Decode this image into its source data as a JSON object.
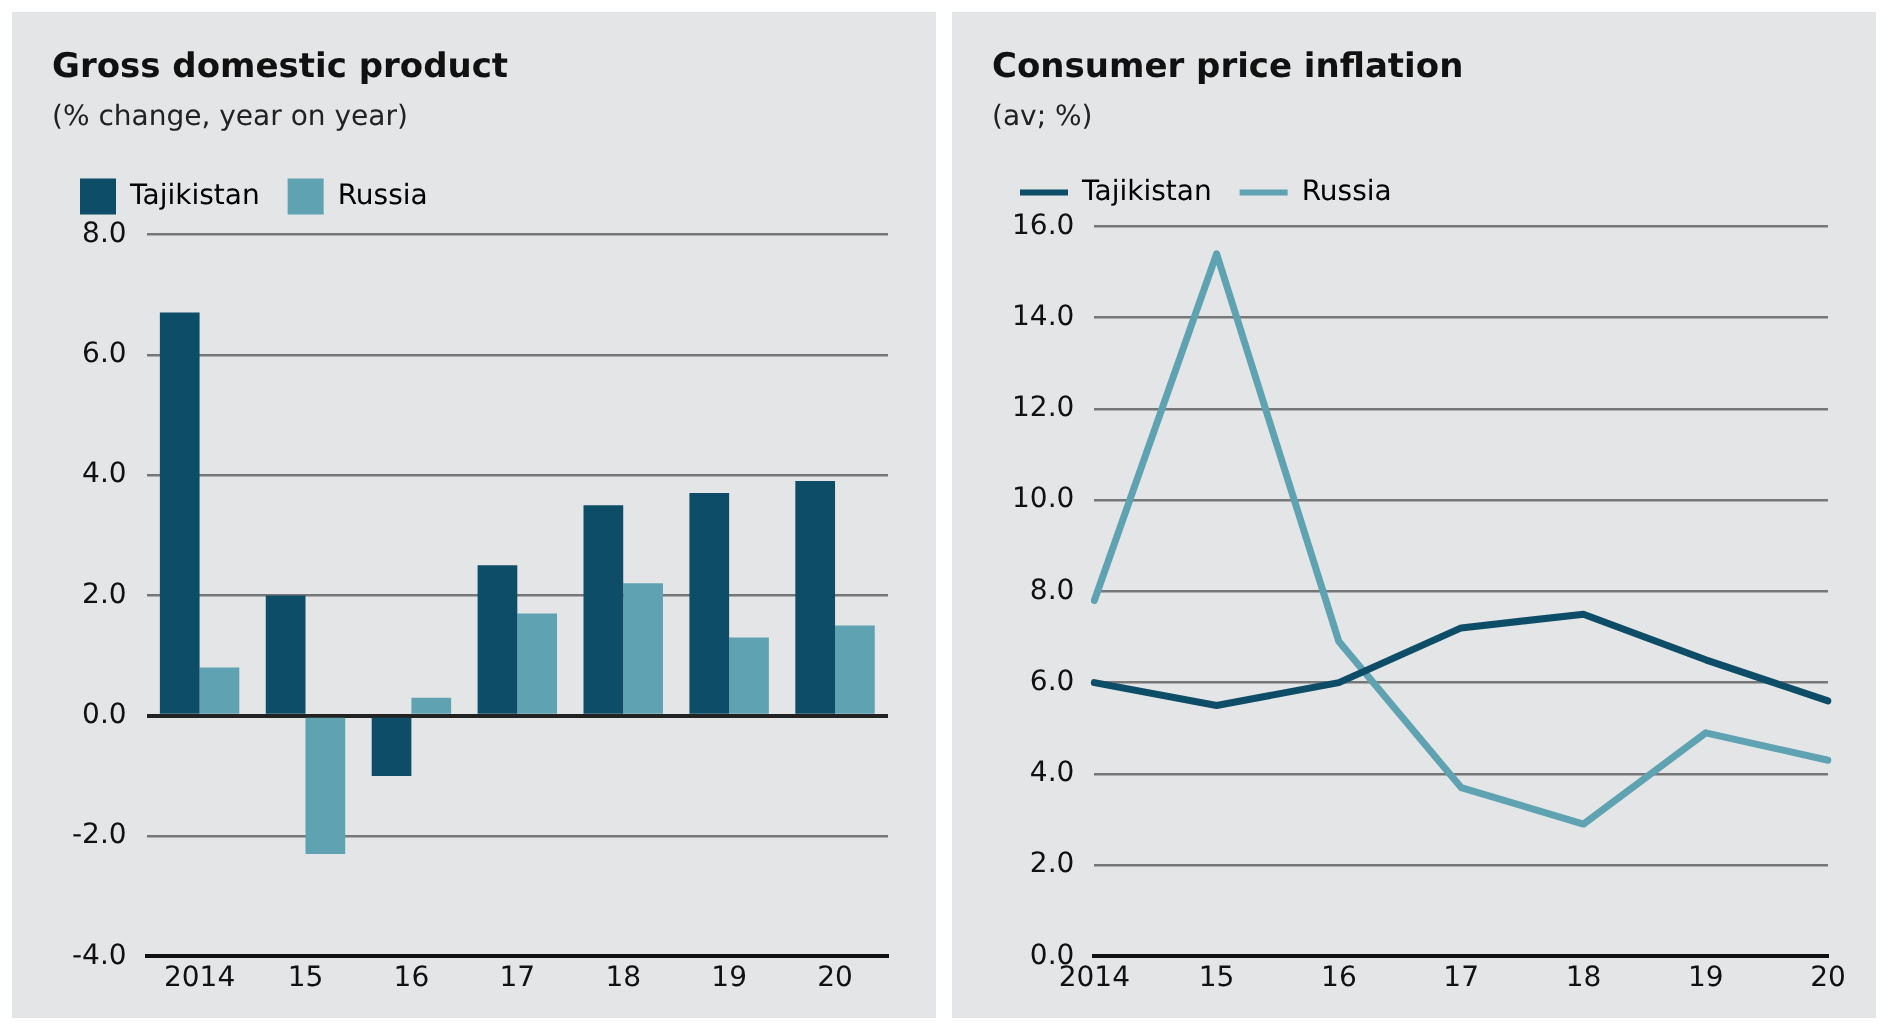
{
  "chart_data": [
    {
      "type": "bar",
      "title": "Gross domestic product",
      "subtitle": "(% change, year on year)",
      "categories": [
        "2014",
        "15",
        "16",
        "17",
        "18",
        "19",
        "20"
      ],
      "series": [
        {
          "name": "Tajikistan",
          "color": "#0e4d68",
          "values": [
            6.7,
            2.0,
            -1.0,
            2.5,
            3.5,
            3.7,
            3.9
          ]
        },
        {
          "name": "Russia",
          "color": "#5fa3b2",
          "values": [
            0.8,
            -2.3,
            0.3,
            1.7,
            2.2,
            1.3,
            1.5
          ]
        }
      ],
      "ylim": [
        -4,
        8
      ],
      "yticks": [
        {
          "value": -4,
          "label": "-4.0"
        },
        {
          "value": -2,
          "label": "-2.0"
        },
        {
          "value": 0,
          "label": "0.0"
        },
        {
          "value": 2,
          "label": "2.0"
        },
        {
          "value": 4,
          "label": "4.0"
        },
        {
          "value": 6,
          "label": "6.0"
        },
        {
          "value": 8,
          "label": "8.0"
        }
      ],
      "grid": "y",
      "legend": "top left"
    },
    {
      "type": "line",
      "title": "Consumer price inflation",
      "subtitle": "(av; %)",
      "categories": [
        "2014",
        "15",
        "16",
        "17",
        "18",
        "19",
        "20"
      ],
      "series": [
        {
          "name": "Tajikistan",
          "color": "#0e4d68",
          "values": [
            6.0,
            5.5,
            6.0,
            7.2,
            7.5,
            6.5,
            5.6
          ]
        },
        {
          "name": "Russia",
          "color": "#5fa3b2",
          "values": [
            7.8,
            15.4,
            6.9,
            3.7,
            2.9,
            4.9,
            4.3
          ]
        }
      ],
      "ylim": [
        0,
        16
      ],
      "yticks": [
        {
          "value": 0,
          "label": "0.0"
        },
        {
          "value": 2,
          "label": "2.0"
        },
        {
          "value": 4,
          "label": "4.0"
        },
        {
          "value": 6,
          "label": "6.0"
        },
        {
          "value": 8,
          "label": "8.0"
        },
        {
          "value": 10,
          "label": "10.0"
        },
        {
          "value": 12,
          "label": "12.0"
        },
        {
          "value": 14,
          "label": "14.0"
        },
        {
          "value": 16,
          "label": "16.0"
        }
      ],
      "grid": "y",
      "legend": "top left",
      "marker": "none",
      "line_style": "solid"
    }
  ]
}
